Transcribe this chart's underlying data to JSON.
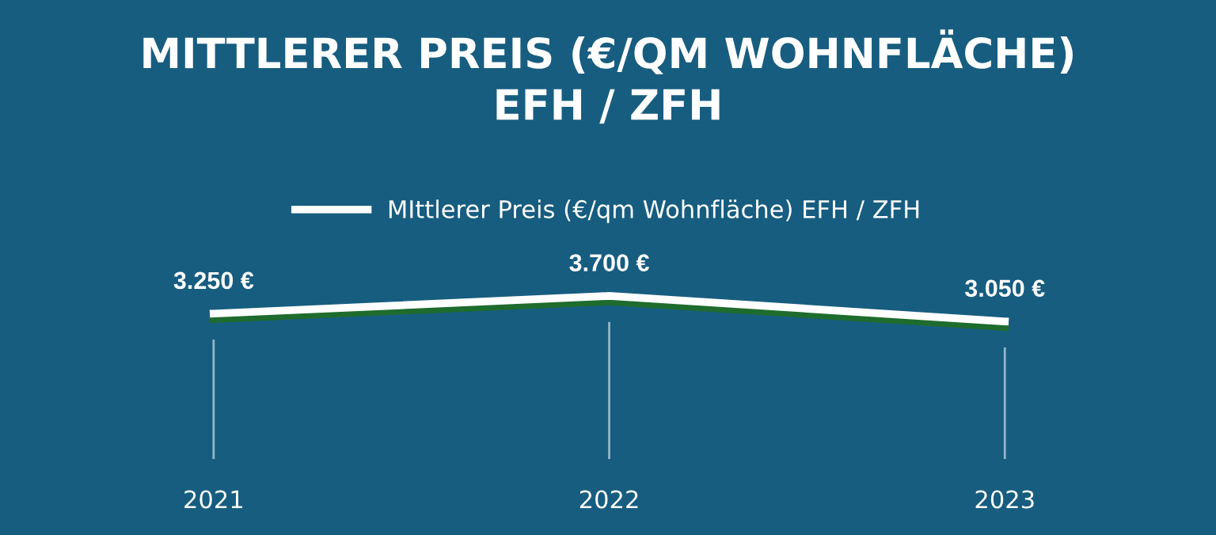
{
  "chart_data": {
    "type": "line",
    "title": "MITTLERER PREIS (€/QM WOHNFLÄCHE)\nEFH / ZFH",
    "categories": [
      "2021",
      "2022",
      "2023"
    ],
    "series": [
      {
        "name": "MIttlerer Preis (€/qm Wohnfläche) EFH / ZFH",
        "color": "#ffffff",
        "values": [
          3250,
          3700,
          3050
        ],
        "value_labels": [
          "3.250 €",
          "3.700 €",
          "3.050 €"
        ]
      }
    ],
    "tick_labels": "x",
    "legend": "top",
    "marker": "none",
    "line_style": "solid"
  }
}
